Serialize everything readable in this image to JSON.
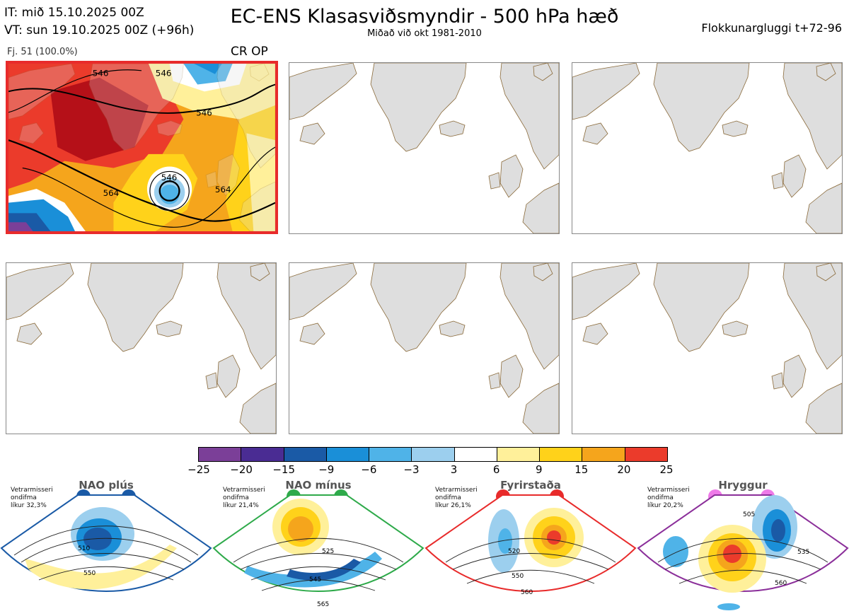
{
  "header": {
    "it_line": "IT: mið 15.10.2025 00Z",
    "vt_line": "VT: sun 19.10.2025 00Z  (+96h)",
    "title": "EC-ENS Klasasviðsmyndir - 500 hPa hæð",
    "subtitle": "Miðað við okt 1981-2010",
    "window": "Flokkunargluggi t+72-96"
  },
  "cluster_panel": {
    "caption": "Fj. 51 (100.0%)",
    "tag": "CR OP",
    "contour_labels": [
      "546",
      "546",
      "546",
      "564",
      "564",
      "546"
    ],
    "border_color": "#e82b2b"
  },
  "empty_panels_count": 5,
  "colorbar": {
    "labels": [
      "−25",
      "−20",
      "−15",
      "−9",
      "−6",
      "−3",
      "3",
      "6",
      "9",
      "15",
      "20",
      "25"
    ],
    "colors": [
      "#7b3f98",
      "#4a2c93",
      "#1a5aa6",
      "#1a8fd8",
      "#4fb3e8",
      "#9ccfee",
      "#ffffff",
      "#fff09a",
      "#ffd21a",
      "#f5a51c",
      "#eb3b2b",
      "#b51018"
    ]
  },
  "regimes": [
    {
      "name": "NAO plús",
      "note1": "Vetrarmisseri",
      "note2": "ondifma",
      "note3": "líkur 32,3%",
      "color": "#1a5aa6",
      "dot_color": "#1a5aa6",
      "contours": [
        "510",
        "550"
      ]
    },
    {
      "name": "NAO mínus",
      "note1": "Vetrarmisseri",
      "note2": "ondifma",
      "note3": "líkur 21,4%",
      "color": "#2eaa4a",
      "dot_color": "#2eaa4a",
      "contours": [
        "525",
        "545",
        "565"
      ]
    },
    {
      "name": "Fyrirstaða",
      "note1": "Vetrarmisseri",
      "note2": "ondifma",
      "note3": "líkur 26,1%",
      "color": "#e82b2b",
      "dot_color": "#e82b2b",
      "contours": [
        "520",
        "550",
        "560"
      ]
    },
    {
      "name": "Hryggur",
      "note1": "Vetrarmisseri",
      "note2": "ondifma",
      "note3": "líkur 20,2%",
      "color": "#8b2f9a",
      "dot_color": "#ee7ae8",
      "contours": [
        "505",
        "535",
        "560"
      ]
    }
  ]
}
